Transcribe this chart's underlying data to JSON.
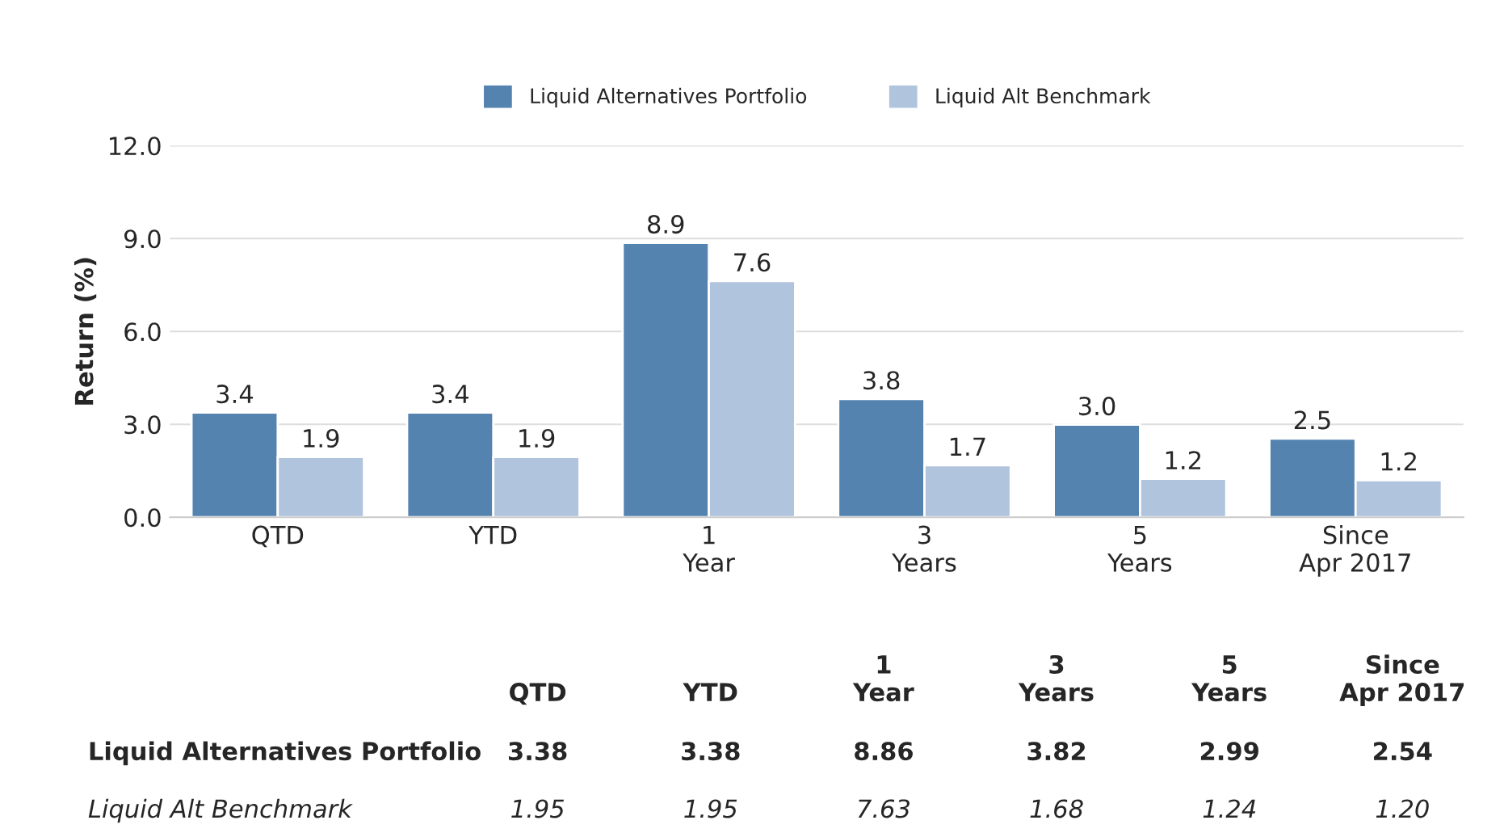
{
  "chart_data": {
    "type": "bar",
    "ylabel": "Return (%)",
    "categories": [
      "QTD",
      "YTD",
      "1\nYear",
      "3\nYears",
      "5\nYears",
      "Since\nApr 2017"
    ],
    "series": [
      {
        "name": "Liquid Alternatives Portfolio",
        "color": "#5583b0",
        "values": [
          3.38,
          3.38,
          8.86,
          3.82,
          2.99,
          2.54
        ],
        "value_labels": [
          "3.4",
          "3.4",
          "8.9",
          "3.8",
          "3.0",
          "2.5"
        ]
      },
      {
        "name": "Liquid Alt Benchmark",
        "color": "#b0c4de",
        "values": [
          1.95,
          1.95,
          7.63,
          1.68,
          1.24,
          1.2
        ],
        "value_labels": [
          "1.9",
          "1.9",
          "7.6",
          "1.7",
          "1.2",
          "1.2"
        ]
      }
    ],
    "ylim": [
      0,
      12
    ],
    "yticks": [
      {
        "value": 0,
        "label": "0.0"
      },
      {
        "value": 3,
        "label": "3.0"
      },
      {
        "value": 6,
        "label": "6.0"
      },
      {
        "value": 9,
        "label": "9.0"
      },
      {
        "value": 12,
        "label": "12.0"
      }
    ],
    "grid": "y",
    "legend": "top",
    "annotations": [
      "3.38",
      "3.38",
      "8.86",
      "3.82",
      "2.99",
      "2.54",
      "1.95",
      "1.95",
      "7.63",
      "1.68",
      "1.24",
      "1.20"
    ]
  }
}
